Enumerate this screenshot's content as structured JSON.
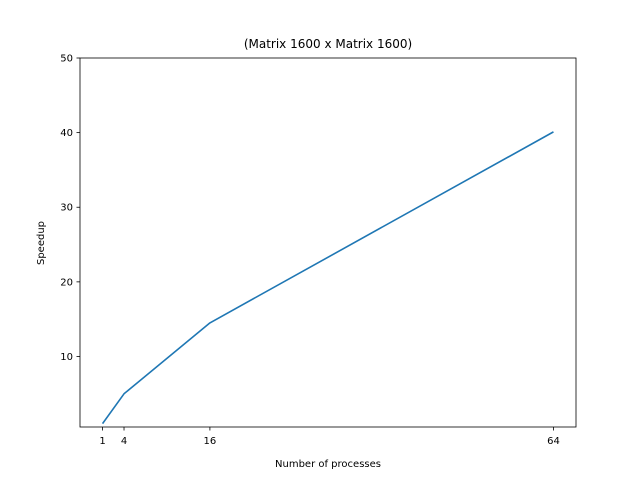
{
  "chart_data": {
    "type": "line",
    "title": "(Matrix 1600 x Matrix 1600)",
    "xlabel": "Number of processes",
    "ylabel": "Speedup",
    "xticks": [
      1,
      4,
      16,
      64
    ],
    "yticks": [
      10,
      20,
      30,
      40,
      50
    ],
    "xlim": [
      -2.15,
      67.15
    ],
    "ylim": [
      0.55,
      50
    ],
    "grid": false,
    "series": [
      {
        "color": "#1f77b4",
        "x": [
          1,
          4,
          16,
          64
        ],
        "y": [
          1,
          5,
          14.5,
          40.1
        ]
      }
    ]
  }
}
